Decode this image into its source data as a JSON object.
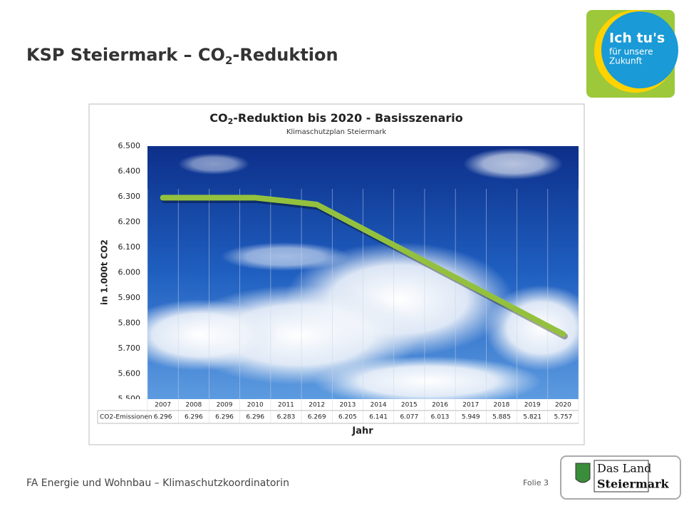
{
  "header": {
    "title": [
      "KSP Steiermark – CO",
      "2",
      "-Reduktion"
    ]
  },
  "chart_data": {
    "type": "line",
    "title": [
      "CO",
      "2",
      "-Reduktion bis 2020 - Basisszenario"
    ],
    "subtitle": "Klimaschutzplan Steiermark",
    "ylabel": "in 1.000t CO2",
    "xlabel": "Jahr",
    "categories": [
      "2007",
      "2008",
      "2009",
      "2010",
      "2011",
      "2012",
      "2013",
      "2014",
      "2015",
      "2016",
      "2017",
      "2018",
      "2019",
      "2020"
    ],
    "series": [
      {
        "name": "CO2-Emissionen",
        "color": "#93c13e",
        "values": [
          6296,
          6296,
          6296,
          6296,
          6283,
          6269,
          6205,
          6141,
          6077,
          6013,
          5949,
          5885,
          5821,
          5757
        ],
        "value_labels": [
          "6.296",
          "6.296",
          "6.296",
          "6.296",
          "6.283",
          "6.269",
          "6.205",
          "6.141",
          "6.077",
          "6.013",
          "5.949",
          "5.885",
          "5.821",
          "5.757"
        ]
      }
    ],
    "ylim": [
      5500,
      6500
    ],
    "yticks": [
      {
        "value": 5500,
        "label": "5.500"
      },
      {
        "value": 5600,
        "label": "5.600"
      },
      {
        "value": 5700,
        "label": "5.700"
      },
      {
        "value": 5800,
        "label": "5.800"
      },
      {
        "value": 5900,
        "label": "5.900"
      },
      {
        "value": 6000,
        "label": "6.000"
      },
      {
        "value": 6100,
        "label": "6.100"
      },
      {
        "value": 6200,
        "label": "6.200"
      },
      {
        "value": 6300,
        "label": "6.300"
      },
      {
        "value": 6400,
        "label": "6.400"
      },
      {
        "value": 6500,
        "label": "6.500"
      }
    ]
  },
  "footer": {
    "text": "FA Energie und Wohnbau – Klimaschutzkoordinatorin",
    "slide": "Folie 3"
  },
  "logo_top": {
    "lines": [
      "Ich tu's",
      "für unsere",
      "Zukunft"
    ]
  },
  "logo_bottom": {
    "lines": [
      "Das Land",
      "Steiermark"
    ]
  }
}
